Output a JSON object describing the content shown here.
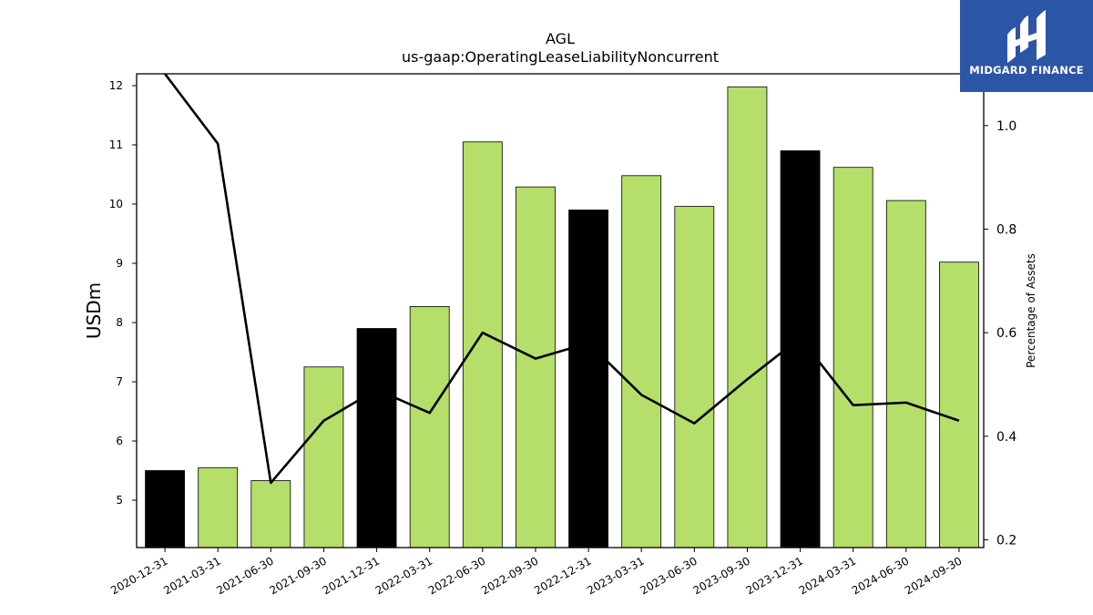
{
  "chart_data": {
    "type": "bar",
    "title": "AGL",
    "subtitle": "us-gaap:OperatingLeaseLiabilityNoncurrent",
    "ylabel": "USDm",
    "y2label": "Percentage of Assets",
    "ylim": [
      4.2,
      12.2
    ],
    "y2lim": [
      0.185,
      1.1
    ],
    "yticks": [
      5,
      6,
      7,
      8,
      9,
      10,
      11,
      12
    ],
    "y2ticks": [
      "0.2",
      "0.4",
      "0.6",
      "0.8",
      "1.0"
    ],
    "categories": [
      "2020-12-31",
      "2021-03-31",
      "2021-06-30",
      "2021-09-30",
      "2021-12-31",
      "2022-03-31",
      "2022-06-30",
      "2022-09-30",
      "2022-12-31",
      "2023-03-31",
      "2023-06-30",
      "2023-09-30",
      "2023-12-31",
      "2024-03-31",
      "2024-06-30",
      "2024-09-30"
    ],
    "series": [
      {
        "values": [
          5.5,
          5.55,
          5.33,
          7.25,
          7.9,
          8.27,
          11.05,
          10.29,
          9.9,
          10.48,
          9.96,
          11.98,
          10.9,
          10.62,
          10.06,
          9.02
        ],
        "colors": [
          "#000000",
          "#b5df6a",
          "#b5df6a",
          "#b5df6a",
          "#000000",
          "#b5df6a",
          "#b5df6a",
          "#b5df6a",
          "#000000",
          "#b5df6a",
          "#b5df6a",
          "#b5df6a",
          "#000000",
          "#b5df6a",
          "#b5df6a",
          "#b5df6a"
        ]
      },
      {
        "axis": "right",
        "type": "line",
        "values": [
          1.1,
          0.965,
          0.31,
          0.43,
          0.49,
          0.445,
          0.6,
          0.55,
          0.58,
          0.48,
          0.425,
          0.51,
          0.59,
          0.46,
          0.465,
          0.43
        ]
      }
    ],
    "grid": false
  },
  "logo": {
    "text": "MIDGARD FINANCE"
  }
}
